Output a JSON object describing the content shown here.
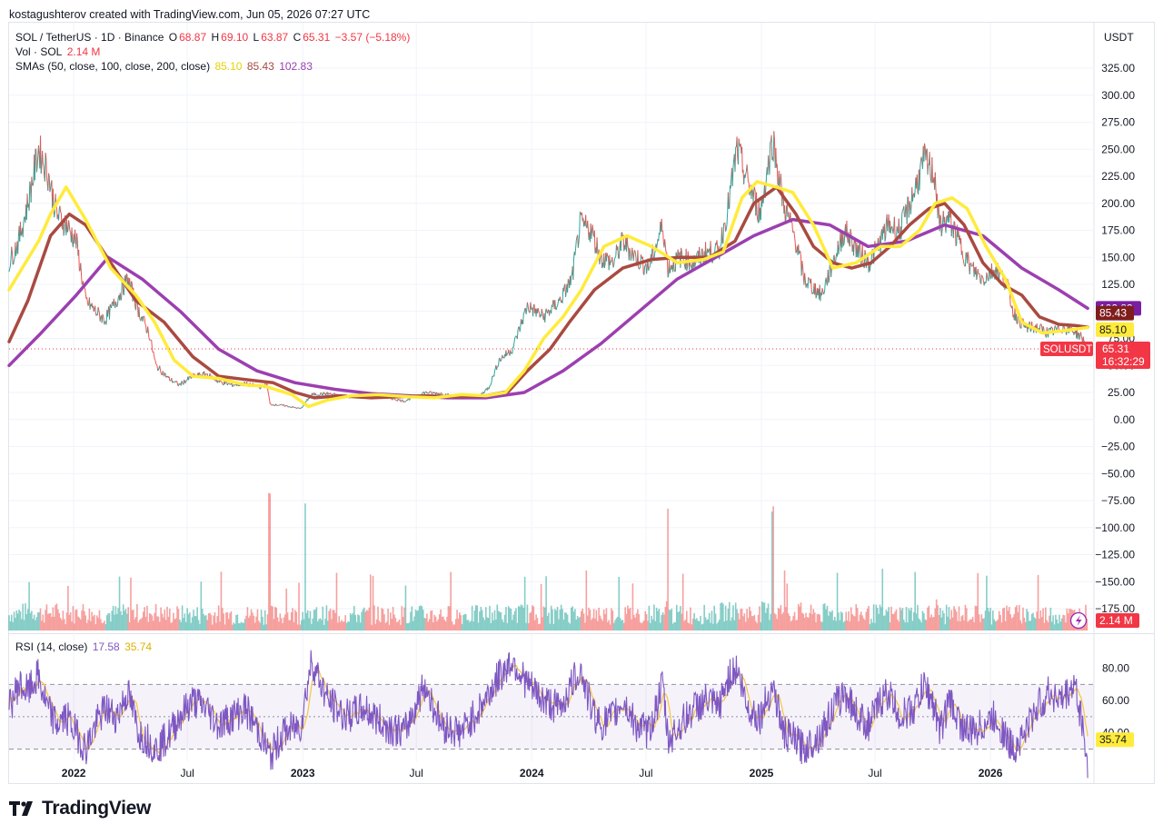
{
  "header": {
    "created_by": "kostagushterov created with TradingView.com, Jun 05, 2026 07:27 UTC"
  },
  "legend": {
    "symbol": "SOL / TetherUS · 1D · Binance",
    "open_label": "O",
    "open": "68.87",
    "high_label": "H",
    "high": "69.10",
    "low_label": "L",
    "low": "63.87",
    "close_label": "C",
    "close": "65.31",
    "change": "−3.57 (−5.18%)",
    "vol_label": "Vol · SOL",
    "vol_value": "2.14 M",
    "sma_label": "SMAs (50, close, 100, close, 200, close)",
    "sma50": "85.10",
    "sma100": "85.43",
    "sma200": "102.83",
    "rsi_label": "RSI (14, close)",
    "rsi_value": "17.58",
    "rsi_ma_value": "35.74"
  },
  "currency": "USDT",
  "price_tags": {
    "sma200": "102.83",
    "sma100": "85.43",
    "sma50": "85.10",
    "symbol_tag": "SOLUSDT",
    "last": "65.31",
    "countdown": "16:32:29",
    "volume": "2.14 M",
    "rsi_ma": "35.74"
  },
  "footer": {
    "brand": "TradingView"
  },
  "colors": {
    "up": "#26a69a",
    "down": "#ef5350",
    "sma50": "#ffeb3b",
    "sma100": "#a94a41",
    "sma200": "#9c3fb0",
    "rsi": "#7e57c2",
    "rsi_ma": "#f5c542",
    "last_price": "#f23645"
  },
  "chart_data": [
    {
      "type": "line",
      "title": "SOL / TetherUS · 1D · Binance",
      "y_axis_ticks": [
        "325.00",
        "300.00",
        "275.00",
        "250.00",
        "225.00",
        "200.00",
        "175.00",
        "150.00",
        "125.00",
        "100.00",
        "75.00",
        "50.00",
        "25.00",
        "0.00",
        "−25.00",
        "−50.00",
        "−75.00",
        "−100.00",
        "−125.00",
        "−150.00",
        "−175.00"
      ],
      "x_axis_ticks": [
        {
          "label": "2022",
          "date": "2022-01-01"
        },
        {
          "label": "Jul",
          "date": "2022-07-01"
        },
        {
          "label": "2023",
          "date": "2023-01-01"
        },
        {
          "label": "Jul",
          "date": "2023-07-01"
        },
        {
          "label": "2024",
          "date": "2024-01-01"
        },
        {
          "label": "Jul",
          "date": "2024-07-01"
        },
        {
          "label": "2025",
          "date": "2025-01-01"
        },
        {
          "label": "Jul",
          "date": "2025-07-01"
        },
        {
          "label": "2026",
          "date": "2026-01-01"
        }
      ],
      "ylim": [
        -175,
        325
      ],
      "xlim": [
        "2021-09-20",
        "2026-06-15"
      ],
      "grid": true,
      "price": {
        "x": [
          "2021-09-20",
          "2021-10-05",
          "2021-10-20",
          "2021-11-06",
          "2021-11-20",
          "2021-12-05",
          "2021-12-20",
          "2022-01-05",
          "2022-01-20",
          "2022-02-05",
          "2022-02-20",
          "2022-03-10",
          "2022-03-28",
          "2022-04-15",
          "2022-05-01",
          "2022-05-12",
          "2022-06-01",
          "2022-06-18",
          "2022-07-10",
          "2022-08-01",
          "2022-08-20",
          "2022-09-10",
          "2022-10-01",
          "2022-10-25",
          "2022-11-05",
          "2022-11-10",
          "2022-12-01",
          "2022-12-29",
          "2023-01-15",
          "2023-02-10",
          "2023-03-10",
          "2023-04-10",
          "2023-05-10",
          "2023-06-12",
          "2023-07-14",
          "2023-08-10",
          "2023-09-10",
          "2023-10-10",
          "2023-10-25",
          "2023-11-10",
          "2023-12-01",
          "2023-12-25",
          "2024-01-20",
          "2024-02-15",
          "2024-03-05",
          "2024-03-18",
          "2024-04-05",
          "2024-04-20",
          "2024-05-10",
          "2024-05-25",
          "2024-06-15",
          "2024-07-05",
          "2024-07-28",
          "2024-08-05",
          "2024-08-25",
          "2024-09-15",
          "2024-10-05",
          "2024-10-25",
          "2024-11-10",
          "2024-11-23",
          "2024-12-10",
          "2024-12-30",
          "2025-01-19",
          "2025-02-05",
          "2025-02-25",
          "2025-03-10",
          "2025-04-07",
          "2025-04-25",
          "2025-05-14",
          "2025-06-05",
          "2025-06-22",
          "2025-07-10",
          "2025-07-22",
          "2025-08-10",
          "2025-09-01",
          "2025-09-18",
          "2025-10-05",
          "2025-10-11",
          "2025-10-28",
          "2025-11-15",
          "2025-12-01",
          "2025-12-20",
          "2026-01-10",
          "2026-01-28",
          "2026-02-06",
          "2026-02-25",
          "2026-03-15",
          "2026-04-05",
          "2026-04-25",
          "2026-05-15",
          "2026-05-28",
          "2026-06-05"
        ],
        "y": [
          145,
          165,
          200,
          250,
          230,
          190,
          180,
          165,
          110,
          100,
          92,
          110,
          130,
          100,
          80,
          50,
          38,
          32,
          40,
          42,
          35,
          32,
          33,
          30,
          32,
          14,
          13,
          10,
          23,
          24,
          21,
          22,
          21,
          17,
          25,
          24,
          20,
          22,
          30,
          55,
          65,
          105,
          95,
          110,
          130,
          180,
          175,
          150,
          145,
          165,
          150,
          140,
          180,
          140,
          150,
          145,
          155,
          155,
          200,
          250,
          220,
          190,
          260,
          200,
          165,
          130,
          115,
          145,
          175,
          155,
          145,
          165,
          180,
          175,
          210,
          240,
          225,
          180,
          185,
          160,
          140,
          130,
          140,
          125,
          100,
          85,
          85,
          80,
          85,
          82,
          75,
          65
        ]
      },
      "sma50": {
        "x": [
          "2021-09-20",
          "2021-11-06",
          "2021-11-25",
          "2021-12-20",
          "2022-01-20",
          "2022-03-01",
          "2022-04-10",
          "2022-05-10",
          "2022-06-10",
          "2022-07-10",
          "2022-08-20",
          "2022-10-01",
          "2022-11-01",
          "2022-12-15",
          "2023-01-10",
          "2023-02-10",
          "2023-03-20",
          "2023-05-01",
          "2023-06-20",
          "2023-07-30",
          "2023-09-10",
          "2023-10-20",
          "2023-11-20",
          "2023-12-20",
          "2024-01-20",
          "2024-02-20",
          "2024-03-20",
          "2024-04-25",
          "2024-06-01",
          "2024-07-10",
          "2024-08-20",
          "2024-10-01",
          "2024-11-01",
          "2024-12-01",
          "2024-12-25",
          "2025-01-25",
          "2025-02-20",
          "2025-03-25",
          "2025-04-25",
          "2025-06-01",
          "2025-07-10",
          "2025-08-10",
          "2025-09-10",
          "2025-10-05",
          "2025-11-01",
          "2025-11-25",
          "2025-12-25",
          "2026-01-25",
          "2026-02-20",
          "2026-03-25",
          "2026-04-25",
          "2026-06-05"
        ],
        "y": [
          120,
          165,
          190,
          215,
          185,
          140,
          115,
          90,
          55,
          40,
          38,
          32,
          31,
          23,
          12,
          18,
          22,
          23,
          21,
          20,
          23,
          22,
          25,
          45,
          75,
          95,
          120,
          160,
          170,
          160,
          145,
          148,
          155,
          205,
          220,
          215,
          210,
          180,
          140,
          145,
          160,
          160,
          175,
          200,
          205,
          195,
          160,
          130,
          90,
          80,
          82,
          85.1
        ]
      },
      "sma100": {
        "x": [
          "2021-09-20",
          "2021-10-20",
          "2021-11-25",
          "2021-12-25",
          "2022-01-20",
          "2022-03-01",
          "2022-04-10",
          "2022-05-25",
          "2022-07-10",
          "2022-08-20",
          "2022-10-01",
          "2022-11-15",
          "2022-12-20",
          "2023-01-20",
          "2023-03-01",
          "2023-04-20",
          "2023-06-01",
          "2023-07-15",
          "2023-09-01",
          "2023-10-20",
          "2023-11-25",
          "2023-12-25",
          "2024-01-30",
          "2024-03-01",
          "2024-04-10",
          "2024-05-25",
          "2024-07-10",
          "2024-08-25",
          "2024-10-10",
          "2024-11-20",
          "2024-12-20",
          "2025-01-25",
          "2025-02-25",
          "2025-03-25",
          "2025-04-25",
          "2025-05-25",
          "2025-06-25",
          "2025-07-25",
          "2025-08-25",
          "2025-09-25",
          "2025-10-20",
          "2025-11-20",
          "2025-12-20",
          "2026-01-20",
          "2026-02-20",
          "2026-03-20",
          "2026-04-20",
          "2026-05-15",
          "2026-06-05"
        ],
        "y": [
          72,
          110,
          170,
          190,
          180,
          145,
          110,
          90,
          58,
          40,
          37,
          34,
          25,
          20,
          22,
          20,
          21,
          22,
          21,
          22,
          26,
          45,
          65,
          90,
          120,
          140,
          148,
          150,
          150,
          165,
          200,
          215,
          190,
          160,
          145,
          140,
          145,
          160,
          180,
          195,
          200,
          180,
          145,
          125,
          115,
          95,
          88,
          87,
          85.43
        ]
      },
      "sma200": {
        "x": [
          "2021-09-20",
          "2021-11-10",
          "2022-01-05",
          "2022-02-25",
          "2022-04-20",
          "2022-06-20",
          "2022-08-20",
          "2022-10-20",
          "2022-12-20",
          "2023-02-20",
          "2023-04-20",
          "2023-06-20",
          "2023-08-20",
          "2023-10-20",
          "2023-12-20",
          "2024-02-20",
          "2024-04-20",
          "2024-06-20",
          "2024-08-20",
          "2024-10-20",
          "2024-12-20",
          "2025-02-20",
          "2025-04-20",
          "2025-06-20",
          "2025-08-20",
          "2025-10-20",
          "2025-12-20",
          "2026-02-20",
          "2026-04-20",
          "2026-06-05"
        ],
        "y": [
          50,
          80,
          115,
          150,
          130,
          100,
          65,
          45,
          34,
          28,
          24,
          22,
          20,
          20,
          25,
          45,
          70,
          100,
          130,
          150,
          170,
          185,
          180,
          160,
          165,
          180,
          170,
          140,
          120,
          102.83
        ]
      },
      "volume": {
        "note": "Volume bars in SOL; last value shown 2.14 M",
        "spikes_x": [
          "2022-11-09",
          "2023-01-05",
          "2025-01-19",
          "2024-08-05"
        ]
      },
      "last_price": 65.31
    },
    {
      "type": "line",
      "title": "RSI (14, close)",
      "y_axis_ticks": [
        "80.00",
        "60.00",
        "40.00"
      ],
      "ylim": [
        10,
        100
      ],
      "bands": [
        30,
        50,
        70
      ],
      "rsi": {
        "x": [
          "2021-09-20",
          "2021-10-05",
          "2021-10-20",
          "2021-11-05",
          "2021-11-20",
          "2021-12-05",
          "2021-12-20",
          "2022-01-05",
          "2022-01-20",
          "2022-02-05",
          "2022-02-20",
          "2022-03-10",
          "2022-03-28",
          "2022-04-15",
          "2022-05-01",
          "2022-05-12",
          "2022-06-01",
          "2022-06-18",
          "2022-07-10",
          "2022-08-01",
          "2022-08-20",
          "2022-09-10",
          "2022-10-01",
          "2022-10-25",
          "2022-11-10",
          "2022-12-01",
          "2022-12-29",
          "2023-01-15",
          "2023-02-10",
          "2023-03-10",
          "2023-04-10",
          "2023-05-10",
          "2023-06-12",
          "2023-07-14",
          "2023-08-10",
          "2023-09-10",
          "2023-10-10",
          "2023-11-10",
          "2023-12-01",
          "2023-12-25",
          "2024-01-20",
          "2024-02-15",
          "2024-03-05",
          "2024-03-18",
          "2024-04-05",
          "2024-04-20",
          "2024-05-10",
          "2024-05-25",
          "2024-06-15",
          "2024-07-05",
          "2024-07-28",
          "2024-08-05",
          "2024-08-25",
          "2024-09-15",
          "2024-10-05",
          "2024-10-25",
          "2024-11-10",
          "2024-11-23",
          "2024-12-10",
          "2024-12-30",
          "2025-01-19",
          "2025-02-05",
          "2025-02-25",
          "2025-03-10",
          "2025-04-07",
          "2025-04-25",
          "2025-05-14",
          "2025-06-05",
          "2025-06-22",
          "2025-07-10",
          "2025-07-22",
          "2025-08-10",
          "2025-09-01",
          "2025-09-18",
          "2025-10-05",
          "2025-10-11",
          "2025-10-28",
          "2025-11-15",
          "2025-12-01",
          "2025-12-20",
          "2026-01-10",
          "2026-01-28",
          "2026-02-06",
          "2026-02-25",
          "2026-03-15",
          "2026-04-05",
          "2026-04-25",
          "2026-05-15",
          "2026-05-28",
          "2026-06-05"
        ],
        "y": [
          55,
          70,
          65,
          75,
          55,
          45,
          50,
          40,
          30,
          45,
          55,
          50,
          65,
          40,
          35,
          30,
          38,
          50,
          60,
          55,
          45,
          50,
          55,
          40,
          25,
          40,
          45,
          85,
          60,
          50,
          55,
          45,
          40,
          70,
          45,
          40,
          55,
          75,
          85,
          70,
          60,
          55,
          70,
          80,
          55,
          45,
          50,
          60,
          45,
          40,
          70,
          35,
          45,
          55,
          60,
          55,
          75,
          80,
          55,
          50,
          70,
          40,
          35,
          30,
          40,
          55,
          65,
          50,
          45,
          60,
          65,
          50,
          55,
          70,
          55,
          40,
          60,
          45,
          40,
          45,
          50,
          35,
          30,
          40,
          55,
          65,
          60,
          70,
          45,
          17.58
        ]
      },
      "rsi_ma_last": 35.74
    }
  ]
}
